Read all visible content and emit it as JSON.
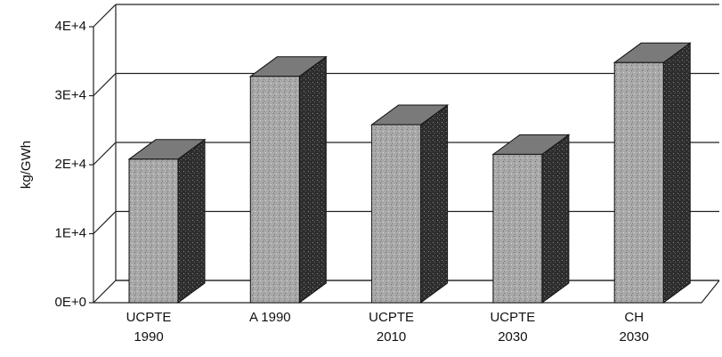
{
  "chart_data": {
    "type": "bar3d",
    "ylabel": "kg/GWh",
    "categories": [
      [
        "UCPTE",
        "1990"
      ],
      [
        "A 1990"
      ],
      [
        "UCPTE",
        "2010"
      ],
      [
        "UCPTE",
        "2030"
      ],
      [
        "CH",
        "2030"
      ]
    ],
    "values": [
      20800,
      32800,
      25800,
      21500,
      34800
    ],
    "color": "#a9a9a9",
    "ylim": [
      0,
      40000
    ],
    "yticks": [
      {
        "value": 0,
        "label": "0E+0"
      },
      {
        "value": 10000,
        "label": "1E+4"
      },
      {
        "value": 20000,
        "label": "2E+4"
      },
      {
        "value": 30000,
        "label": "3E+4"
      },
      {
        "value": 40000,
        "label": "4E+4"
      }
    ],
    "grid": true
  }
}
